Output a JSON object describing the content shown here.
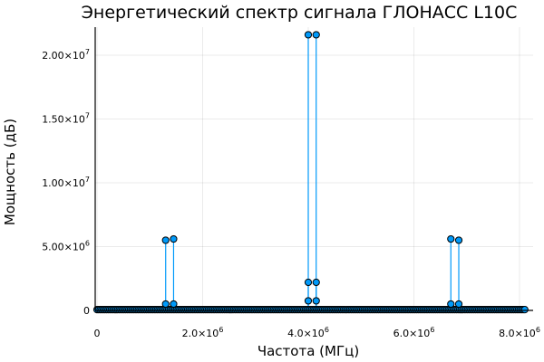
{
  "chart_data": {
    "type": "stem",
    "title": "Энергетический спектр сигнала ГЛОНАСС L10C",
    "xlabel": "Частота (МГц)",
    "ylabel": "Мощность (дБ)",
    "xlim": [
      0,
      8100000
    ],
    "ylim": [
      0,
      22200000
    ],
    "grid": true,
    "legend": "none",
    "color": "#009AFA",
    "marker_stroke": "#000000",
    "x_ticks": [
      {
        "value": 0,
        "mantissa": "0",
        "exp": ""
      },
      {
        "value": 2000000,
        "mantissa": "2.0×10",
        "exp": "6"
      },
      {
        "value": 4000000,
        "mantissa": "4.0×10",
        "exp": "6"
      },
      {
        "value": 6000000,
        "mantissa": "6.0×10",
        "exp": "6"
      },
      {
        "value": 8000000,
        "mantissa": "8.0×10",
        "exp": "6"
      }
    ],
    "y_ticks": [
      {
        "value": 0,
        "mantissa": "0",
        "exp": ""
      },
      {
        "value": 5000000,
        "mantissa": "5.00×10",
        "exp": "6"
      },
      {
        "value": 10000000,
        "mantissa": "1.00×10",
        "exp": "7"
      },
      {
        "value": 15000000,
        "mantissa": "1.50×10",
        "exp": "7"
      },
      {
        "value": 20000000,
        "mantissa": "2.00×10",
        "exp": "7"
      }
    ],
    "noise_floor": {
      "x_start": 0,
      "x_end": 8100000,
      "count": 270,
      "value": 60000
    },
    "peaks": [
      {
        "x": 1300000,
        "y": 5500000
      },
      {
        "x": 1450000,
        "y": 5600000
      },
      {
        "x": 1300000,
        "y": 500000
      },
      {
        "x": 1450000,
        "y": 500000
      },
      {
        "x": 4000000,
        "y": 21600000
      },
      {
        "x": 4150000,
        "y": 21600000
      },
      {
        "x": 4000000,
        "y": 2200000
      },
      {
        "x": 4150000,
        "y": 2200000
      },
      {
        "x": 4000000,
        "y": 750000
      },
      {
        "x": 4150000,
        "y": 750000
      },
      {
        "x": 6700000,
        "y": 5600000
      },
      {
        "x": 6850000,
        "y": 5500000
      },
      {
        "x": 6700000,
        "y": 500000
      },
      {
        "x": 6850000,
        "y": 500000
      }
    ]
  }
}
